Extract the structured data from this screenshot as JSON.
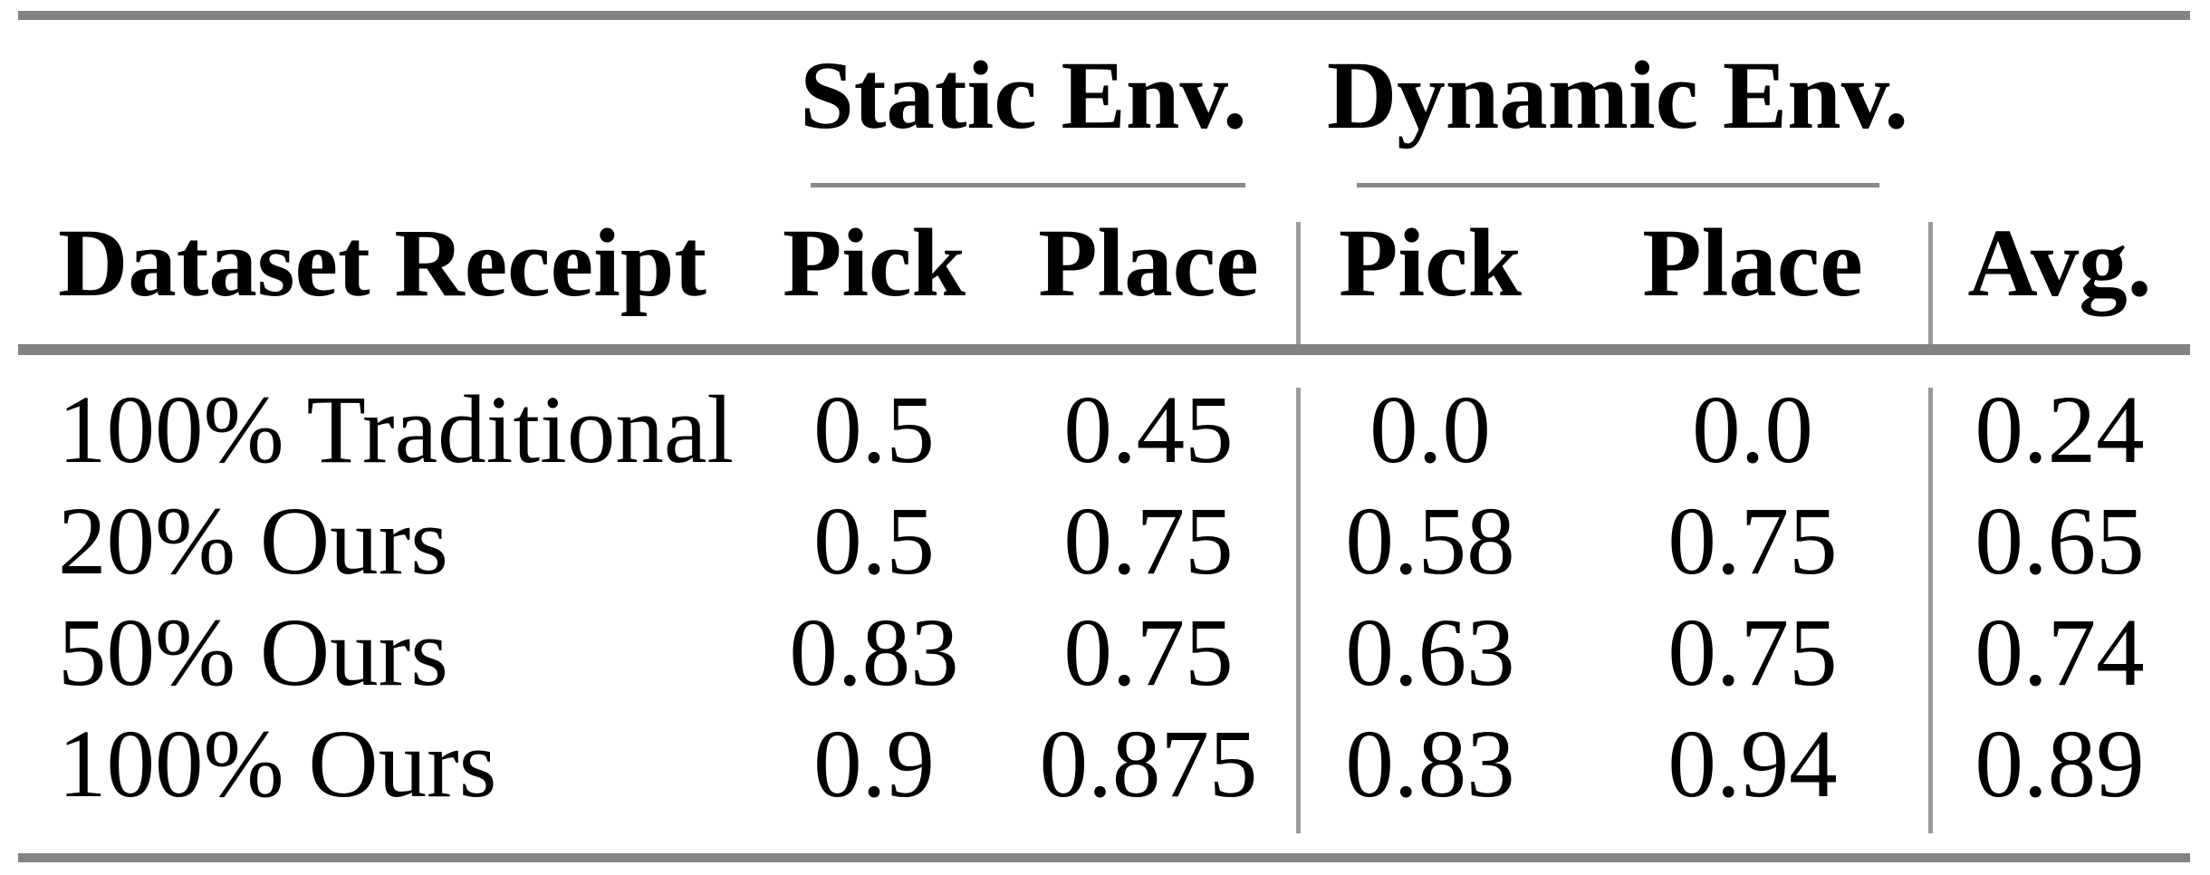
{
  "table": {
    "group_headers": [
      {
        "id": "static",
        "label": "Static Env."
      },
      {
        "id": "dynamic",
        "label": "Dynamic Env."
      }
    ],
    "column_headers": {
      "row_label": "Dataset Receipt",
      "cols": [
        "Pick",
        "Place",
        "Pick",
        "Place",
        "Avg."
      ]
    },
    "rows": [
      {
        "label": "100% Traditional",
        "cells": [
          "0.5",
          "0.45",
          "0.0",
          "0.0",
          "0.24"
        ]
      },
      {
        "label": "20% Ours",
        "cells": [
          "0.5",
          "0.75",
          "0.58",
          "0.75",
          "0.65"
        ]
      },
      {
        "label": "50% Ours",
        "cells": [
          "0.83",
          "0.75",
          "0.63",
          "0.75",
          "0.74"
        ]
      },
      {
        "label": "100% Ours",
        "cells": [
          "0.9",
          "0.875",
          "0.83",
          "0.94",
          "0.89"
        ]
      }
    ],
    "style": {
      "rule_color": "#838383",
      "cmidrule_color": "#8a8a8a",
      "separator_color": "#9a9a9a",
      "text_color": "#000000",
      "background": "#ffffff"
    }
  }
}
